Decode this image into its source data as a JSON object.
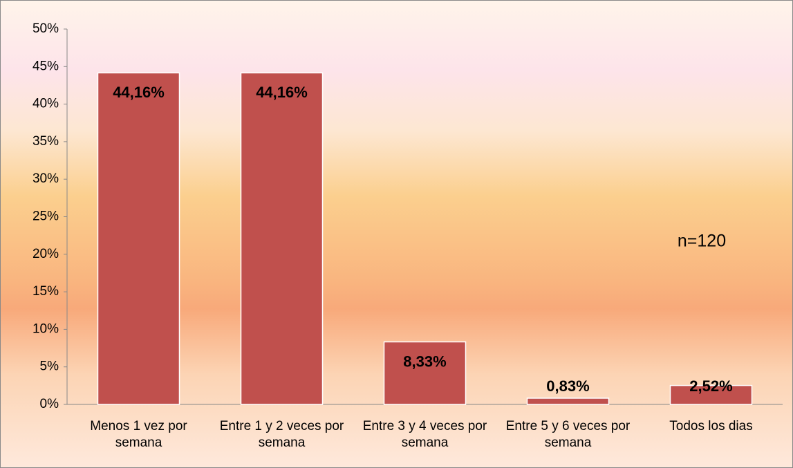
{
  "chart_data": {
    "type": "bar",
    "annotation": "n=120",
    "categories": [
      "Menos 1 vez por semana",
      "Entre 1 y 2 veces por semana",
      "Entre 3 y 4 veces por semana",
      "Entre 5 y 6 veces por semana",
      "Todos los dias"
    ],
    "values": [
      44.16,
      44.16,
      8.33,
      0.83,
      2.52
    ],
    "value_labels": [
      "44,16%",
      "44,16%",
      "8,33%",
      "0,83%",
      "2,52%"
    ],
    "color": "#c0504d",
    "ylim": [
      0,
      50
    ],
    "yticks": [
      {
        "value": 0,
        "label": "0%"
      },
      {
        "value": 5,
        "label": "5%"
      },
      {
        "value": 10,
        "label": "10%"
      },
      {
        "value": 15,
        "label": "15%"
      },
      {
        "value": 20,
        "label": "20%"
      },
      {
        "value": 25,
        "label": "25%"
      },
      {
        "value": 30,
        "label": "30%"
      },
      {
        "value": 35,
        "label": "35%"
      },
      {
        "value": 40,
        "label": "40%"
      },
      {
        "value": 45,
        "label": "45%"
      },
      {
        "value": 50,
        "label": "50%"
      }
    ],
    "grid": false
  }
}
